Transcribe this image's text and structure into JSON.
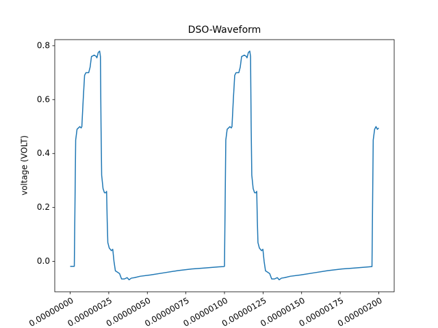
{
  "chart_data": {
    "type": "line",
    "title": "DSO-Waveform",
    "y_label": "voltage (VOLT)",
    "color": "#1f77b4",
    "xlim": [
      -1e-07,
      2.1e-06
    ],
    "ylim": [
      -0.1125,
      0.8225
    ],
    "xticks": [
      {
        "value": 0,
        "label": "0.00000000"
      },
      {
        "value": 2.5e-07,
        "label": "0.00000025"
      },
      {
        "value": 5e-07,
        "label": "0.00000050"
      },
      {
        "value": 7.5e-07,
        "label": "0.00000075"
      },
      {
        "value": 1e-06,
        "label": "0.00000100"
      },
      {
        "value": 1.25e-06,
        "label": "0.00000125"
      },
      {
        "value": 1.5e-06,
        "label": "0.00000150"
      },
      {
        "value": 1.75e-06,
        "label": "0.00000175"
      },
      {
        "value": 2e-06,
        "label": "0.00000200"
      }
    ],
    "yticks": [
      {
        "value": 0,
        "label": "0.0"
      },
      0.2,
      0.4,
      0.6,
      0.8
    ],
    "x": [
      0,
      2.22e-08,
      2.67e-08,
      3.56e-08,
      4.44e-08,
      6.22e-08,
      7.11e-08,
      7.56e-08,
      8.44e-08,
      9.33e-08,
      1.02e-07,
      1.2e-07,
      1.29e-07,
      1.38e-07,
      1.56e-07,
      1.69e-07,
      1.73e-07,
      1.82e-07,
      1.91e-07,
      1.96e-07,
      2e-07,
      2.04e-07,
      2.13e-07,
      2.22e-07,
      2.31e-07,
      2.36e-07,
      2.4e-07,
      2.44e-07,
      2.53e-07,
      2.67e-07,
      2.76e-07,
      2.84e-07,
      2.93e-07,
      3.07e-07,
      3.2e-07,
      3.33e-07,
      3.51e-07,
      3.69e-07,
      3.82e-07,
      3.96e-07,
      4.18e-07,
      4.53e-07,
      5.2e-07,
      6.09e-07,
      6.98e-07,
      7.87e-07,
      8.76e-07,
      9.64e-07,
      9.96e-07,
      1e-06,
      1.0086e-06,
      1.0174e-06,
      1.0352e-06,
      1.0441e-06,
      1.0486e-06,
      1.0574e-06,
      1.0663e-06,
      1.075e-06,
      1.093e-06,
      1.102e-06,
      1.111e-06,
      1.129e-06,
      1.142e-06,
      1.146e-06,
      1.155e-06,
      1.164e-06,
      1.169e-06,
      1.173e-06,
      1.177e-06,
      1.186e-06,
      1.195e-06,
      1.204e-06,
      1.209e-06,
      1.213e-06,
      1.217e-06,
      1.226e-06,
      1.24e-06,
      1.249e-06,
      1.257e-06,
      1.266e-06,
      1.28e-06,
      1.293e-06,
      1.306e-06,
      1.324e-06,
      1.342e-06,
      1.355e-06,
      1.369e-06,
      1.391e-06,
      1.426e-06,
      1.493e-06,
      1.582e-06,
      1.671e-06,
      1.76e-06,
      1.849e-06,
      1.937e-06,
      1.956e-06,
      1.964e-06,
      1.973e-06,
      1.982e-06,
      1.991e-06,
      2e-06
    ],
    "values": [
      -0.018,
      -0.018,
      -0.018,
      0.45,
      0.49,
      0.5,
      0.495,
      0.5,
      0.6,
      0.69,
      0.7,
      0.7,
      0.72,
      0.76,
      0.765,
      0.76,
      0.755,
      0.775,
      0.78,
      0.76,
      0.5,
      0.32,
      0.27,
      0.255,
      0.255,
      0.26,
      0.15,
      0.07,
      0.05,
      0.04,
      0.045,
      0,
      -0.035,
      -0.04,
      -0.045,
      -0.065,
      -0.065,
      -0.06,
      -0.068,
      -0.062,
      -0.06,
      -0.055,
      -0.05,
      -0.042,
      -0.034,
      -0.028,
      -0.024,
      -0.02,
      -0.019,
      -0.018,
      0.45,
      0.49,
      0.5,
      0.495,
      0.5,
      0.6,
      0.69,
      0.7,
      0.7,
      0.72,
      0.76,
      0.765,
      0.76,
      0.755,
      0.775,
      0.78,
      0.76,
      0.5,
      0.32,
      0.27,
      0.255,
      0.255,
      0.26,
      0.15,
      0.07,
      0.05,
      0.04,
      0.045,
      0,
      -0.035,
      -0.04,
      -0.045,
      -0.065,
      -0.065,
      -0.06,
      -0.068,
      -0.062,
      -0.06,
      -0.055,
      -0.05,
      -0.042,
      -0.034,
      -0.028,
      -0.024,
      -0.02,
      -0.019,
      0.45,
      0.49,
      0.5,
      0.49,
      0.495
    ]
  }
}
